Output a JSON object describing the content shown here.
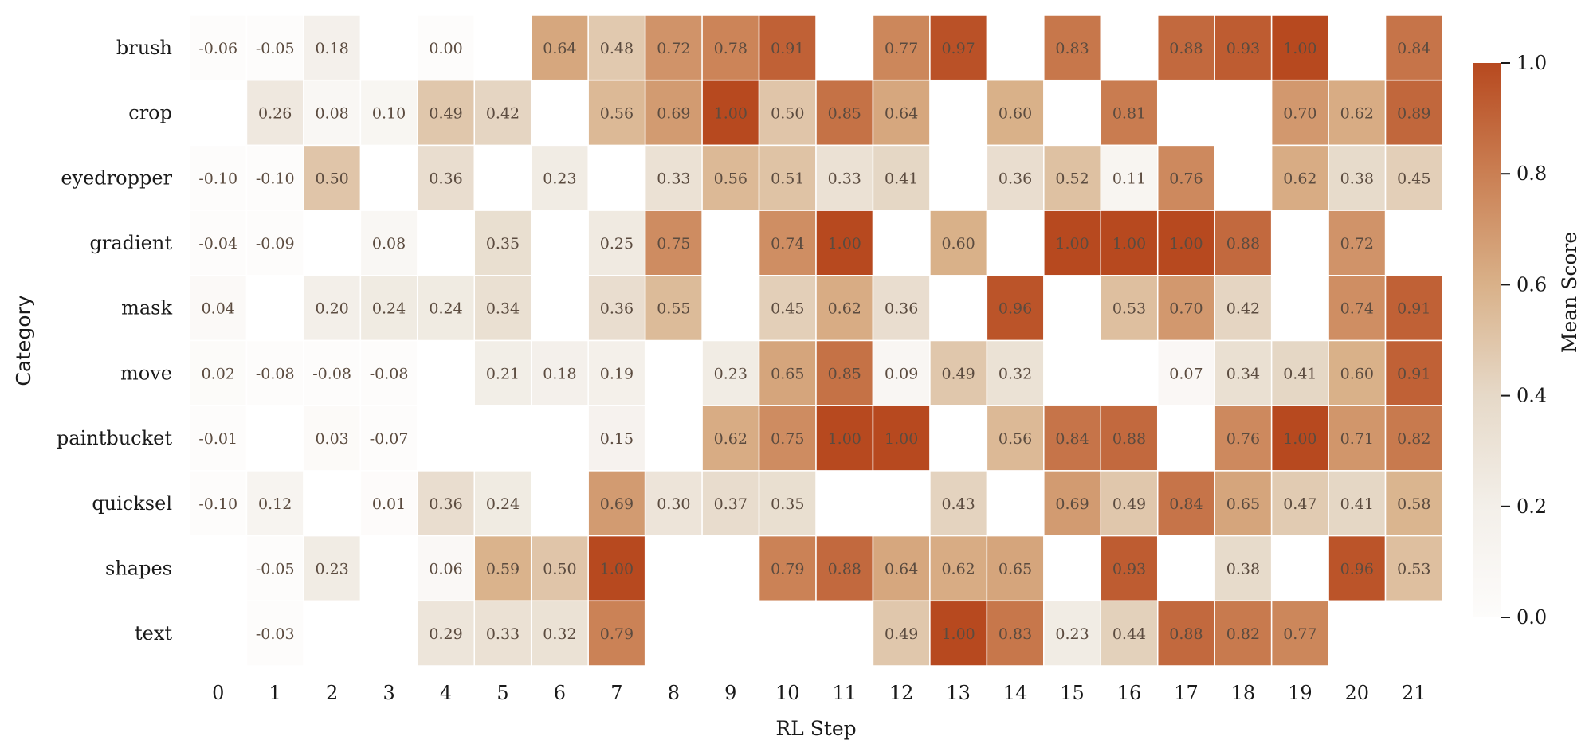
{
  "chart_data": {
    "type": "heatmap",
    "title": "",
    "xlabel": "RL Step",
    "ylabel": "Category",
    "colorbar_label": "Mean Score",
    "colorbar_ticks": [
      "0.0",
      "0.2",
      "0.4",
      "0.6",
      "0.8",
      "1.0"
    ],
    "colorbar_tick_values": [
      0.0,
      0.2,
      0.4,
      0.6,
      0.8,
      1.0
    ],
    "vmin": 0.0,
    "vmax": 1.0,
    "colormap": [
      "#fdfcfb",
      "#f3efe9",
      "#e6d9c8",
      "#d9b189",
      "#ca7f53",
      "#b7491f"
    ],
    "x": [
      "0",
      "1",
      "2",
      "3",
      "4",
      "5",
      "6",
      "7",
      "8",
      "9",
      "10",
      "11",
      "12",
      "13",
      "14",
      "15",
      "16",
      "17",
      "18",
      "19",
      "20",
      "21"
    ],
    "y": [
      "brush",
      "crop",
      "eyedropper",
      "gradient",
      "mask",
      "move",
      "paintbucket",
      "quicksel",
      "shapes",
      "text"
    ],
    "values": [
      [
        -0.06,
        -0.05,
        0.18,
        null,
        0.0,
        null,
        0.64,
        0.48,
        0.72,
        0.78,
        0.91,
        null,
        0.77,
        0.97,
        null,
        0.83,
        null,
        0.88,
        0.93,
        1.0,
        null,
        0.84
      ],
      [
        null,
        0.26,
        0.08,
        0.1,
        0.49,
        0.42,
        null,
        0.56,
        0.69,
        1.0,
        0.5,
        0.85,
        0.64,
        null,
        0.6,
        null,
        0.81,
        null,
        null,
        0.7,
        0.62,
        0.89
      ],
      [
        -0.1,
        -0.1,
        0.5,
        null,
        0.36,
        null,
        0.23,
        null,
        0.33,
        0.56,
        0.51,
        0.33,
        0.41,
        null,
        0.36,
        0.52,
        0.11,
        0.76,
        null,
        0.62,
        0.38,
        0.45
      ],
      [
        -0.04,
        -0.09,
        null,
        0.08,
        null,
        0.35,
        null,
        0.25,
        0.75,
        null,
        0.74,
        1.0,
        null,
        0.6,
        null,
        1.0,
        1.0,
        1.0,
        0.88,
        null,
        0.72,
        null
      ],
      [
        0.04,
        null,
        0.2,
        0.24,
        0.24,
        0.34,
        null,
        0.36,
        0.55,
        null,
        0.45,
        0.62,
        0.36,
        null,
        0.96,
        null,
        0.53,
        0.7,
        0.42,
        null,
        0.74,
        0.91
      ],
      [
        0.02,
        -0.08,
        -0.08,
        -0.08,
        null,
        0.21,
        0.18,
        0.19,
        null,
        0.23,
        0.65,
        0.85,
        0.09,
        0.49,
        0.32,
        null,
        null,
        0.07,
        0.34,
        0.41,
        0.6,
        0.91
      ],
      [
        -0.01,
        null,
        0.03,
        -0.07,
        null,
        null,
        null,
        0.15,
        null,
        0.62,
        0.75,
        1.0,
        1.0,
        null,
        0.56,
        0.84,
        0.88,
        null,
        0.76,
        1.0,
        0.71,
        0.82
      ],
      [
        -0.1,
        0.12,
        null,
        0.01,
        0.36,
        0.24,
        null,
        0.69,
        0.3,
        0.37,
        0.35,
        null,
        null,
        0.43,
        null,
        0.69,
        0.49,
        0.84,
        0.65,
        0.47,
        0.41,
        0.58
      ],
      [
        null,
        -0.05,
        0.23,
        null,
        0.06,
        0.59,
        0.5,
        1.0,
        null,
        null,
        0.79,
        0.88,
        0.64,
        0.62,
        0.65,
        null,
        0.93,
        null,
        0.38,
        null,
        0.96,
        0.53
      ],
      [
        null,
        -0.03,
        null,
        null,
        0.29,
        0.33,
        0.32,
        0.79,
        null,
        null,
        null,
        null,
        0.49,
        1.0,
        0.83,
        0.23,
        0.44,
        0.88,
        0.82,
        0.77,
        null,
        null
      ]
    ],
    "annotation_format": "0.00",
    "grid": false,
    "legend": "colorbar-right"
  }
}
